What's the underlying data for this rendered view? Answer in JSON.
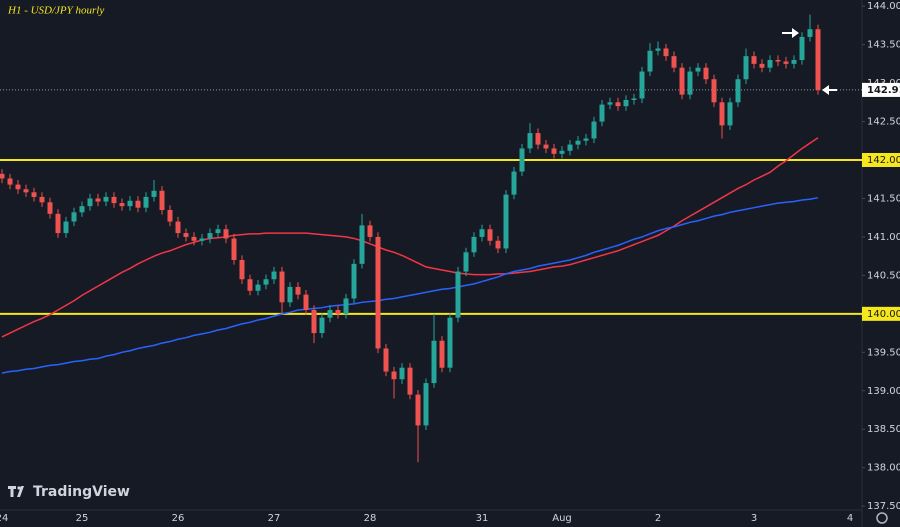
{
  "chart_data": {
    "type": "candlestick",
    "title": "H1 - USD/JPY hourly",
    "watermark": "TradingView",
    "categories": [
      "24",
      null,
      null,
      null,
      null,
      null,
      null,
      null,
      null,
      null,
      "25",
      null,
      null,
      null,
      null,
      null,
      null,
      null,
      null,
      null,
      null,
      null,
      "26",
      null,
      null,
      null,
      null,
      null,
      null,
      null,
      null,
      null,
      null,
      null,
      "27",
      null,
      null,
      null,
      null,
      null,
      null,
      null,
      null,
      null,
      null,
      null,
      "28",
      null,
      null,
      null,
      null,
      null,
      null,
      null,
      null,
      null,
      null,
      null,
      null,
      null,
      "31",
      null,
      null,
      null,
      null,
      null,
      null,
      null,
      null,
      null,
      "Aug",
      null,
      null,
      null,
      null,
      null,
      null,
      null,
      null,
      null,
      null,
      null,
      "2",
      null,
      null,
      null,
      null,
      null,
      null,
      null,
      null,
      null,
      null,
      null,
      "3",
      null,
      null,
      null,
      null,
      null,
      null,
      null,
      null,
      null,
      null,
      null,
      "4"
    ],
    "open": [
      141.82,
      141.76,
      141.68,
      141.62,
      141.58,
      141.52,
      141.45,
      141.3,
      141.05,
      141.2,
      141.32,
      141.4,
      141.5,
      141.46,
      141.52,
      141.44,
      141.4,
      141.47,
      141.38,
      141.52,
      141.6,
      141.35,
      141.2,
      141.05,
      141.0,
      140.95,
      140.98,
      141.05,
      141.1,
      140.98,
      140.7,
      140.45,
      140.3,
      140.38,
      140.45,
      140.55,
      140.15,
      140.35,
      140.25,
      140.05,
      139.75,
      139.95,
      140.05,
      140.0,
      140.2,
      140.65,
      141.15,
      141.0,
      139.55,
      139.25,
      139.15,
      139.3,
      138.95,
      138.55,
      139.1,
      139.65,
      139.3,
      139.95,
      140.55,
      140.8,
      141.0,
      141.1,
      140.95,
      140.85,
      141.55,
      141.85,
      142.15,
      142.35,
      142.2,
      142.15,
      142.08,
      142.12,
      142.2,
      142.25,
      142.28,
      142.5,
      142.72,
      142.75,
      142.7,
      142.78,
      142.8,
      143.15,
      143.42,
      143.45,
      143.35,
      143.2,
      142.85,
      143.15,
      143.2,
      143.05,
      142.75,
      142.45,
      142.75,
      143.05,
      143.35,
      143.25,
      143.2,
      143.3,
      143.28,
      143.25,
      143.3,
      143.6,
      143.7,
      null,
      null,
      null,
      null
    ],
    "high": [
      141.88,
      141.82,
      141.74,
      141.68,
      141.64,
      141.58,
      141.51,
      141.36,
      141.26,
      141.38,
      141.46,
      141.56,
      141.56,
      141.58,
      141.58,
      141.5,
      141.53,
      141.53,
      141.58,
      141.74,
      141.66,
      141.41,
      141.26,
      141.11,
      141.06,
      141.04,
      141.11,
      141.16,
      141.16,
      141.04,
      140.76,
      140.51,
      140.44,
      140.51,
      140.61,
      140.61,
      140.41,
      140.41,
      140.31,
      140.11,
      140.01,
      140.11,
      140.11,
      140.26,
      140.71,
      141.3,
      141.21,
      141.06,
      139.61,
      139.31,
      139.36,
      139.36,
      139.01,
      139.16,
      140.0,
      139.71,
      140.01,
      140.61,
      140.86,
      141.06,
      141.16,
      141.16,
      141.01,
      141.61,
      141.91,
      142.21,
      142.48,
      142.41,
      142.26,
      142.21,
      142.18,
      142.26,
      142.31,
      142.34,
      142.56,
      142.78,
      142.81,
      142.81,
      142.84,
      142.86,
      143.21,
      143.52,
      143.54,
      143.51,
      143.41,
      143.26,
      143.21,
      143.26,
      143.26,
      143.11,
      142.81,
      142.81,
      143.11,
      143.45,
      143.41,
      143.31,
      143.36,
      143.36,
      143.34,
      143.36,
      143.66,
      143.89,
      143.76,
      null,
      null,
      null,
      null
    ],
    "low": [
      141.7,
      141.62,
      141.56,
      141.52,
      141.46,
      141.39,
      141.24,
      140.99,
      140.99,
      141.14,
      141.26,
      141.34,
      141.4,
      141.4,
      141.38,
      141.34,
      141.34,
      141.32,
      141.32,
      141.46,
      141.29,
      141.14,
      140.99,
      140.94,
      140.89,
      140.89,
      140.92,
      140.99,
      140.92,
      140.64,
      140.39,
      140.24,
      140.24,
      140.32,
      140.39,
      140.0,
      140.09,
      140.19,
      139.99,
      139.62,
      139.69,
      139.89,
      139.94,
      139.94,
      140.14,
      140.59,
      140.94,
      139.49,
      139.19,
      138.9,
      139.09,
      138.89,
      138.07,
      138.49,
      139.04,
      139.24,
      139.24,
      139.89,
      140.49,
      140.74,
      140.94,
      140.89,
      140.79,
      140.79,
      141.49,
      141.79,
      142.09,
      142.14,
      142.09,
      142.02,
      142.02,
      142.06,
      142.14,
      142.19,
      142.22,
      142.44,
      142.66,
      142.64,
      142.64,
      142.72,
      142.74,
      143.09,
      143.36,
      143.29,
      143.14,
      142.79,
      142.79,
      143.09,
      142.99,
      142.69,
      142.28,
      142.39,
      142.69,
      142.99,
      143.19,
      143.14,
      143.14,
      143.22,
      143.19,
      143.19,
      143.24,
      143.54,
      142.85,
      null,
      null,
      null,
      null
    ],
    "close": [
      141.76,
      141.68,
      141.62,
      141.58,
      141.52,
      141.45,
      141.3,
      141.05,
      141.2,
      141.32,
      141.4,
      141.5,
      141.46,
      141.52,
      141.44,
      141.4,
      141.47,
      141.38,
      141.52,
      141.6,
      141.35,
      141.2,
      141.05,
      141.0,
      140.95,
      140.98,
      141.05,
      141.1,
      140.98,
      140.7,
      140.45,
      140.3,
      140.38,
      140.45,
      140.55,
      140.15,
      140.35,
      140.25,
      140.05,
      139.75,
      139.95,
      140.05,
      140.0,
      140.2,
      140.65,
      141.15,
      141.0,
      139.55,
      139.25,
      139.15,
      139.3,
      138.95,
      138.55,
      139.1,
      139.65,
      139.3,
      139.95,
      140.55,
      140.8,
      141.0,
      141.1,
      140.95,
      140.85,
      141.55,
      141.85,
      142.15,
      142.35,
      142.2,
      142.15,
      142.08,
      142.12,
      142.2,
      142.25,
      142.28,
      142.5,
      142.72,
      142.75,
      142.7,
      142.78,
      142.8,
      143.15,
      143.42,
      143.45,
      143.35,
      143.2,
      142.85,
      143.15,
      143.2,
      143.05,
      142.75,
      142.45,
      142.75,
      143.05,
      143.35,
      143.25,
      143.2,
      143.3,
      143.28,
      143.25,
      143.3,
      143.6,
      143.7,
      142.911,
      null,
      null,
      null,
      null
    ],
    "up_color": "#26a69a",
    "down_color": "#ef5350",
    "lines": [
      {
        "color": "#f23645",
        "values": [
          139.7,
          139.75,
          139.8,
          139.85,
          139.9,
          139.94,
          139.99,
          140.05,
          140.11,
          140.17,
          140.24,
          140.3,
          140.36,
          140.42,
          140.48,
          140.54,
          140.59,
          140.65,
          140.7,
          140.75,
          140.79,
          140.82,
          140.86,
          140.9,
          140.93,
          140.96,
          140.98,
          140.99,
          141.0,
          141.02,
          141.03,
          141.04,
          141.04,
          141.05,
          141.05,
          141.05,
          141.05,
          141.05,
          141.05,
          141.04,
          141.03,
          141.02,
          141.01,
          141.0,
          140.98,
          140.95,
          140.91,
          140.87,
          140.83,
          140.8,
          140.76,
          140.71,
          140.66,
          140.61,
          140.59,
          140.57,
          140.55,
          140.53,
          140.52,
          140.51,
          140.51,
          140.51,
          140.52,
          140.52,
          140.53,
          140.54,
          140.55,
          140.57,
          140.59,
          140.61,
          140.62,
          140.64,
          140.67,
          140.7,
          140.73,
          140.76,
          140.79,
          140.82,
          140.86,
          140.9,
          140.94,
          140.98,
          141.02,
          141.08,
          141.14,
          141.21,
          141.27,
          141.33,
          141.39,
          141.45,
          141.51,
          141.57,
          141.63,
          141.68,
          141.74,
          141.79,
          141.84,
          141.92,
          141.99,
          142.07,
          142.15,
          142.22,
          142.29,
          null,
          null,
          null,
          null
        ]
      },
      {
        "color": "#2962ff",
        "values": [
          139.23,
          139.25,
          139.26,
          139.28,
          139.29,
          139.31,
          139.33,
          139.34,
          139.36,
          139.38,
          139.39,
          139.41,
          139.42,
          139.45,
          139.47,
          139.5,
          139.52,
          139.55,
          139.57,
          139.59,
          139.62,
          139.64,
          139.67,
          139.69,
          139.72,
          139.74,
          139.76,
          139.79,
          139.81,
          139.84,
          139.87,
          139.89,
          139.92,
          139.94,
          139.97,
          140.0,
          140.02,
          140.05,
          140.06,
          140.07,
          140.08,
          140.1,
          140.11,
          140.12,
          140.13,
          140.15,
          140.16,
          140.17,
          140.19,
          140.2,
          140.22,
          140.24,
          140.26,
          140.28,
          140.3,
          140.32,
          140.33,
          140.35,
          140.37,
          140.39,
          140.42,
          140.45,
          140.48,
          140.52,
          140.55,
          140.57,
          140.59,
          140.62,
          140.64,
          140.66,
          140.68,
          140.7,
          140.73,
          140.76,
          140.8,
          140.83,
          140.86,
          140.89,
          140.93,
          140.97,
          141.0,
          141.04,
          141.08,
          141.11,
          141.13,
          141.16,
          141.19,
          141.21,
          141.24,
          141.27,
          141.29,
          141.32,
          141.34,
          141.36,
          141.38,
          141.4,
          141.42,
          141.44,
          141.45,
          141.46,
          141.48,
          141.49,
          141.51,
          null,
          null,
          null,
          null
        ]
      }
    ],
    "levels": [
      {
        "value": 142,
        "label": "142.000"
      },
      {
        "value": 140,
        "label": "140.000"
      }
    ],
    "level_color": "#f5e71c",
    "last_price": {
      "value": 142.911,
      "label": "142.911"
    },
    "ylim": [
      137.45,
      144.08
    ],
    "yticks": [
      {
        "value": 137.5,
        "label": "137.500"
      },
      {
        "value": 138,
        "label": "138.000"
      },
      {
        "value": 138.5,
        "label": "138.500"
      },
      {
        "value": 139,
        "label": "139.000"
      },
      {
        "value": 139.5,
        "label": "139.500"
      },
      {
        "value": 140,
        "label": "140.000"
      },
      {
        "value": 140.5,
        "label": "140.500"
      },
      {
        "value": 141,
        "label": "141.000"
      },
      {
        "value": 141.5,
        "label": "141.500"
      },
      {
        "value": 142,
        "label": "142.000"
      },
      {
        "value": 142.5,
        "label": "142.500"
      },
      {
        "value": 143,
        "label": "143.000"
      },
      {
        "value": 143.5,
        "label": "143.500"
      },
      {
        "value": 144,
        "label": "144.000"
      }
    ],
    "grid": false
  }
}
